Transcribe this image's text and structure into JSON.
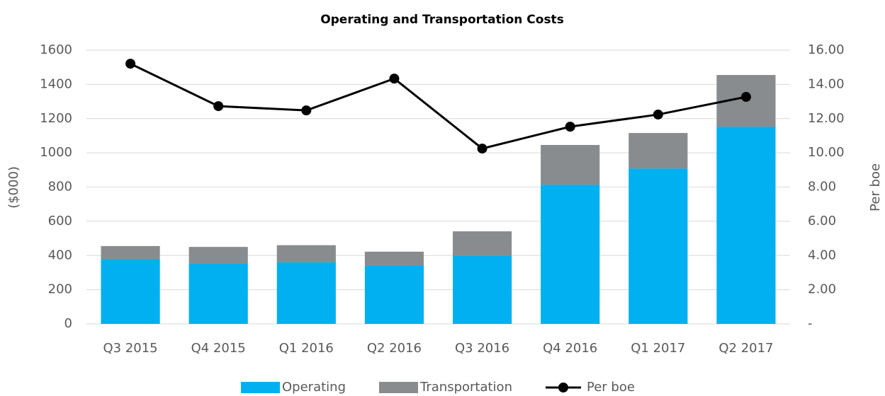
{
  "chart_data": {
    "type": "bar",
    "title": "Operating and Transportation Costs",
    "y_label": "($000)",
    "y2_label": "Per boe",
    "categories": [
      "Q3 2015",
      "Q4 2015",
      "Q1 2016",
      "Q2 2016",
      "Q3 2016",
      "Q4 2016",
      "Q1 2017",
      "Q2 2017"
    ],
    "stacked": true,
    "series": [
      {
        "name": "Operating",
        "color": "#00b0f0",
        "values": [
          380,
          355,
          360,
          339,
          397,
          814,
          909,
          1153
        ]
      },
      {
        "name": "Transportation",
        "color": "#898c8e",
        "values": [
          75,
          95,
          100,
          83,
          144,
          232,
          207,
          302
        ]
      },
      {
        "name": "Per boe",
        "color": "#000000",
        "type": "line",
        "axis": "y2",
        "values": [
          15.21,
          12.73,
          12.48,
          14.34,
          10.25,
          11.53,
          12.24,
          13.27
        ]
      }
    ],
    "ylim": [
      0,
      1600
    ],
    "yticks": [
      0,
      200,
      400,
      600,
      800,
      1000,
      1200,
      1400,
      1600
    ],
    "y2lim": [
      0,
      16
    ],
    "y2ticks": [
      {
        "value": 0,
        "label": "-"
      },
      {
        "value": 2,
        "label": "2.00"
      },
      {
        "value": 4,
        "label": "4.00"
      },
      {
        "value": 6,
        "label": "6.00"
      },
      {
        "value": 8,
        "label": "8.00"
      },
      {
        "value": 10,
        "label": "10.00"
      },
      {
        "value": 12,
        "label": "12.00"
      },
      {
        "value": 14,
        "label": "14.00"
      },
      {
        "value": 16,
        "label": "16.00"
      }
    ],
    "grid": true,
    "legend": "bottom"
  }
}
